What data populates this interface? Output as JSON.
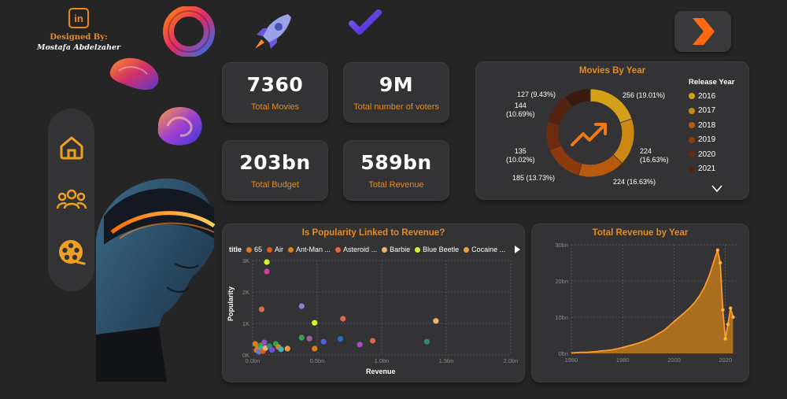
{
  "designer": {
    "icon": "linkedin-icon",
    "designed_by_label": "Designed By:",
    "name": "Mostafa Abdelzaher"
  },
  "nav": {
    "items": [
      {
        "icon": "home-icon"
      },
      {
        "icon": "users-icon"
      },
      {
        "icon": "film-reel-icon"
      }
    ],
    "next_icon": "chevron-right-icon"
  },
  "kpis": {
    "total_movies": {
      "value": "7360",
      "label": "Total Movies"
    },
    "total_voters": {
      "value": "9M",
      "label": "Total number of voters"
    },
    "total_budget": {
      "value": "203bn",
      "label": "Total Budget"
    },
    "total_revenue": {
      "value": "589bn",
      "label": "Total Revenue"
    }
  },
  "movies_by_year": {
    "title": "Movies By Year",
    "center_icon": "trending-up-icon",
    "legend_title": "Release Year",
    "slices": [
      {
        "year": "2016",
        "label": "256 (19.01%)",
        "value": 256,
        "color": "#d4a017"
      },
      {
        "year": "2017",
        "label": "224\n(16.63%)",
        "value": 224,
        "color": "#cc8812"
      },
      {
        "year": "2018",
        "label": "224 (16.63%)",
        "value": 224,
        "color": "#b85a0e"
      },
      {
        "year": "2019",
        "label": "185 (13.73%)",
        "value": 185,
        "color": "#8f3a0c"
      },
      {
        "year": "2020",
        "label": "135\n(10.02%)",
        "value": 135,
        "color": "#6e2b0e"
      },
      {
        "year": "2021",
        "label": "144\n(10.69%)",
        "value": 144,
        "color": "#55220f"
      },
      {
        "year": "",
        "label": "127 (9.43%)",
        "value": 127,
        "color": "#3a1a10"
      }
    ]
  },
  "scatter": {
    "title": "Is Popularity Linked to Revenue?",
    "legend_header": "title",
    "legend": [
      {
        "name": "65",
        "color": "#e07b1a"
      },
      {
        "name": "Air",
        "color": "#e05a1a"
      },
      {
        "name": "Ant-Man ...",
        "color": "#c8852a"
      },
      {
        "name": "Asteroid ...",
        "color": "#d96a4a"
      },
      {
        "name": "Barbie",
        "color": "#f0b070"
      },
      {
        "name": "Blue Beetle",
        "color": "#d8f02a"
      },
      {
        "name": "Cocaine ...",
        "color": "#f0a040"
      }
    ],
    "x_axis_title": "Revenue",
    "y_axis_title": "Popularity",
    "x_ticks": [
      "0.0bn",
      "0.5bn",
      "1.0bn",
      "1.5bn",
      "2.0bn"
    ],
    "y_ticks": [
      "0K",
      "1K",
      "2K",
      "3K"
    ]
  },
  "revenue_by_year": {
    "title": "Total Revenue by Year",
    "x_ticks": [
      "1960",
      "1980",
      "2000",
      "2020"
    ],
    "y_ticks": [
      "0bn",
      "10bn",
      "20bn",
      "30bn"
    ]
  },
  "chart_data": [
    {
      "type": "pie",
      "title": "Movies By Year",
      "legend_title": "Release Year",
      "categories": [
        "2016",
        "2017",
        "2018",
        "2019",
        "2020",
        "2021",
        ""
      ],
      "values": [
        256,
        224,
        224,
        185,
        135,
        144,
        127
      ],
      "labels": [
        "256 (19.01%)",
        "224 (16.63%)",
        "224 (16.63%)",
        "185 (13.73%)",
        "135 (10.02%)",
        "144 (10.69%)",
        "127 (9.43%)"
      ],
      "legend_placement": "right"
    },
    {
      "type": "scatter",
      "title": "Is Popularity Linked to Revenue?",
      "xlabel": "Revenue",
      "ylabel": "Popularity",
      "xlim": [
        0,
        2.0
      ],
      "ylim": [
        0,
        3000
      ],
      "x_unit": "bn",
      "grid": true,
      "points": [
        {
          "x": 0.02,
          "y": 350,
          "color": "#e07b1a"
        },
        {
          "x": 0.03,
          "y": 150,
          "color": "#d96a4a"
        },
        {
          "x": 0.04,
          "y": 250,
          "color": "#c8852a"
        },
        {
          "x": 0.05,
          "y": 100,
          "color": "#5a7ad0"
        },
        {
          "x": 0.06,
          "y": 300,
          "color": "#3ca050"
        },
        {
          "x": 0.07,
          "y": 200,
          "color": "#30b0a0"
        },
        {
          "x": 0.08,
          "y": 120,
          "color": "#e05a1a"
        },
        {
          "x": 0.09,
          "y": 400,
          "color": "#9050c0"
        },
        {
          "x": 0.1,
          "y": 220,
          "color": "#f0b070"
        },
        {
          "x": 0.11,
          "y": 2950,
          "color": "#d8f02a"
        },
        {
          "x": 0.11,
          "y": 2650,
          "color": "#d040a0"
        },
        {
          "x": 0.13,
          "y": 280,
          "color": "#2a8a7a"
        },
        {
          "x": 0.15,
          "y": 160,
          "color": "#7050e0"
        },
        {
          "x": 0.18,
          "y": 350,
          "color": "#3ca050"
        },
        {
          "x": 0.2,
          "y": 250,
          "color": "#c8852a"
        },
        {
          "x": 0.22,
          "y": 180,
          "color": "#4ab0c0"
        },
        {
          "x": 0.07,
          "y": 1450,
          "color": "#d96a4a"
        },
        {
          "x": 0.27,
          "y": 200,
          "color": "#f0a040"
        },
        {
          "x": 0.38,
          "y": 1550,
          "color": "#8a80d0"
        },
        {
          "x": 0.38,
          "y": 550,
          "color": "#3ca050"
        },
        {
          "x": 0.44,
          "y": 520,
          "color": "#a060a0"
        },
        {
          "x": 0.48,
          "y": 1020,
          "color": "#d8f02a"
        },
        {
          "x": 0.48,
          "y": 200,
          "color": "#e07b1a"
        },
        {
          "x": 0.55,
          "y": 420,
          "color": "#5060e0"
        },
        {
          "x": 0.68,
          "y": 510,
          "color": "#2a6ad0"
        },
        {
          "x": 0.7,
          "y": 1150,
          "color": "#d96a4a"
        },
        {
          "x": 0.83,
          "y": 330,
          "color": "#a050c0"
        },
        {
          "x": 0.93,
          "y": 450,
          "color": "#d96a4a"
        },
        {
          "x": 1.35,
          "y": 420,
          "color": "#2a8a7a"
        },
        {
          "x": 1.42,
          "y": 1080,
          "color": "#f0b070"
        }
      ],
      "legend_placement": "top"
    },
    {
      "type": "area",
      "title": "Total Revenue by Year",
      "xlim": [
        1960,
        2025
      ],
      "ylim": [
        0,
        30
      ],
      "y_unit": "bn",
      "grid": true,
      "x": [
        1960,
        1962,
        1964,
        1966,
        1968,
        1970,
        1972,
        1974,
        1976,
        1978,
        1980,
        1982,
        1984,
        1986,
        1988,
        1990,
        1992,
        1994,
        1996,
        1998,
        2000,
        2002,
        2004,
        2006,
        2008,
        2010,
        2012,
        2014,
        2016,
        2017,
        2018,
        2019,
        2020,
        2021,
        2022,
        2023
      ],
      "values": [
        0.1,
        0.2,
        0.3,
        0.3,
        0.4,
        0.5,
        0.7,
        0.8,
        1.0,
        1.3,
        1.6,
        2.0,
        2.4,
        2.8,
        3.3,
        3.9,
        4.6,
        5.5,
        6.3,
        7.5,
        8.8,
        10.0,
        11.2,
        12.5,
        14.0,
        16.0,
        18.5,
        22.0,
        26.5,
        28.5,
        25.0,
        12.0,
        4.0,
        8.0,
        12.5,
        10.0
      ]
    }
  ]
}
